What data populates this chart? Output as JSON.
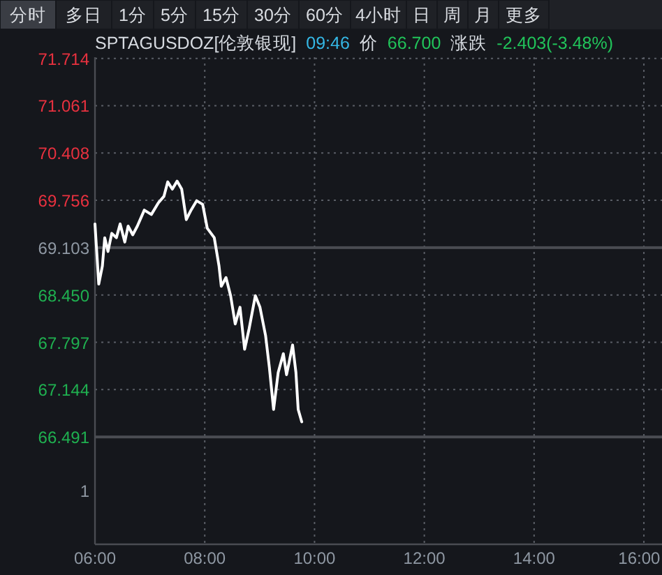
{
  "chart_data": {
    "type": "line",
    "title": "SPTAGUSDOZ[伦敦银现]",
    "annotations": [
      "分时",
      "多日",
      "1分",
      "5分",
      "15分",
      "30分",
      "60分",
      "4小时",
      "日",
      "周",
      "月",
      "更多",
      "09:46",
      "价",
      "66.700",
      "涨跌",
      "-2.403(-3.48%)",
      "1"
    ],
    "x": [
      6.0,
      6.069,
      6.135,
      6.178,
      6.237,
      6.306,
      6.39,
      6.459,
      6.543,
      6.604,
      6.688,
      6.772,
      6.899,
      7.027,
      7.154,
      7.256,
      7.325,
      7.409,
      7.496,
      7.58,
      7.664,
      7.75,
      7.852,
      7.962,
      8.046,
      8.173,
      8.26,
      8.301,
      8.387,
      8.471,
      8.555,
      8.642,
      8.726,
      8.81,
      8.922,
      9.006,
      9.108,
      9.177,
      9.254,
      9.338,
      9.432,
      9.49,
      9.534,
      9.6,
      9.661,
      9.702,
      9.767
    ],
    "series": [
      {
        "color": "#ffffff",
        "values": [
          69.43,
          68.6,
          68.85,
          69.24,
          69.05,
          69.3,
          69.24,
          69.43,
          69.18,
          69.4,
          69.28,
          69.4,
          69.62,
          69.56,
          69.72,
          69.81,
          70.01,
          69.91,
          70.02,
          69.91,
          69.49,
          69.62,
          69.75,
          69.7,
          69.37,
          69.24,
          68.85,
          68.57,
          68.69,
          68.44,
          68.05,
          68.28,
          67.7,
          67.99,
          68.44,
          68.28,
          67.89,
          67.45,
          66.87,
          67.38,
          67.64,
          67.35,
          67.51,
          67.76,
          67.38,
          66.87,
          66.7
        ]
      }
    ],
    "xlim": [
      6,
      16.33
    ],
    "ylim": [
      65.01,
      71.73
    ],
    "xticks": [
      {
        "value": 6,
        "label": "06:00"
      },
      {
        "value": 8,
        "label": "08:00"
      },
      {
        "value": 10,
        "label": "10:00"
      },
      {
        "value": 12,
        "label": "12:00"
      },
      {
        "value": 14,
        "label": "14:00"
      },
      {
        "value": 16,
        "label": "16:00"
      }
    ],
    "yticks": [
      71.714,
      71.061,
      70.408,
      69.756,
      69.103,
      {
        "value": 68.45,
        "label": "68.450"
      },
      67.797,
      67.144,
      66.491
    ],
    "ref_lines": [
      {
        "axis": "y",
        "value": 69.103,
        "color": "#4a4c52"
      },
      {
        "axis": "y",
        "value": 66.491,
        "color": "#4a4c52"
      }
    ],
    "grid": true,
    "line_style": "solid",
    "marker": "none"
  }
}
